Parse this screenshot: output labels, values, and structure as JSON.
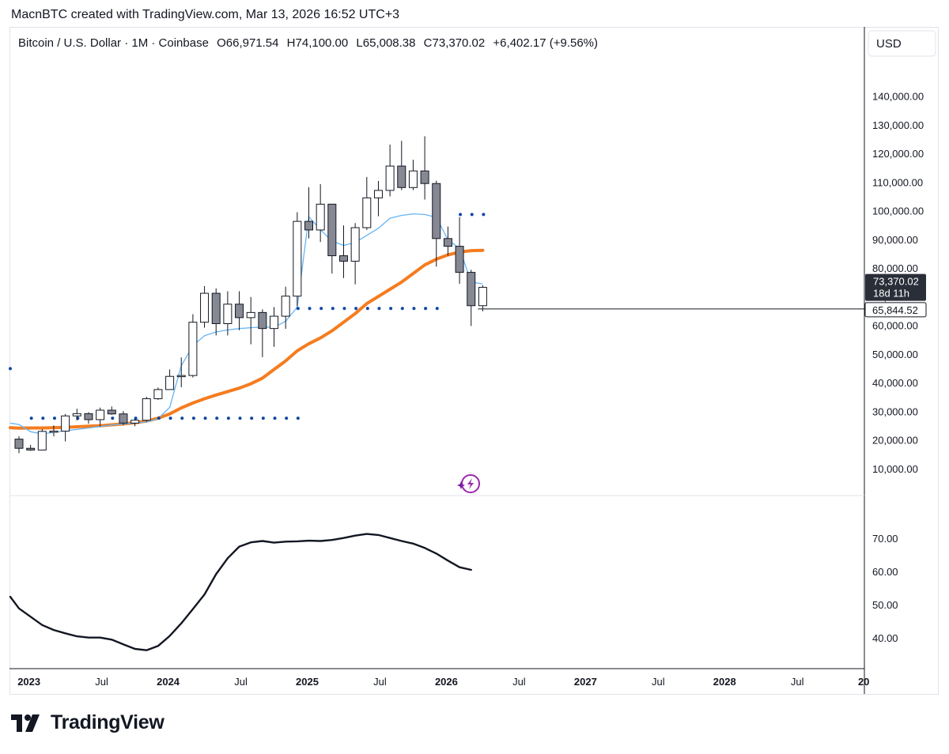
{
  "header": {
    "attribution": "MacnBTC created with TradingView.com, Mar 13, 2026 16:52 UTC+3"
  },
  "legend": {
    "symbol": "Bitcoin / U.S. Dollar · 1M · Coinbase",
    "open": "O66,971.54",
    "high": "H74,100.00",
    "low": "L65,008.38",
    "close": "C73,370.02",
    "change": "+6,402.17 (+9.56%)"
  },
  "currency_button": "USD",
  "footer": {
    "brand": "TradingView"
  },
  "colors": {
    "up_body": "#ffffff",
    "down_body": "#868993",
    "candle_outline": "#131722",
    "ma_thin": "#64b5f6",
    "ma_thick": "#f57c1f",
    "dots": "#0d47a1",
    "rsi_line": "#131722",
    "tag_dark": "#2a2e39",
    "ai_icon": "#9c27b0"
  },
  "chart_data": {
    "type": "candlestick",
    "interval": "1M",
    "price_axis": {
      "ticks": [
        "140,000.00",
        "130,000.00",
        "120,000.00",
        "110,000.00",
        "100,000.00",
        "90,000.00",
        "80,000.00",
        "70,000.00",
        "60,000.00",
        "50,000.00",
        "40,000.00",
        "30,000.00",
        "20,000.00",
        "10,000.00"
      ],
      "range": [
        6500,
        148000
      ]
    },
    "current_price_tag": {
      "price": "73,370.02",
      "countdown": "18d 11h",
      "value": 73370.02
    },
    "horizontal_line": {
      "label": "65,844.52",
      "value": 65844.52
    },
    "time_axis": [
      {
        "label": "2023",
        "index": 0,
        "year": true
      },
      {
        "label": "Jul",
        "index": 6,
        "year": false
      },
      {
        "label": "2024",
        "index": 12,
        "year": true
      },
      {
        "label": "Jul",
        "index": 18,
        "year": false
      },
      {
        "label": "2025",
        "index": 24,
        "year": true
      },
      {
        "label": "Jul",
        "index": 30,
        "year": false
      },
      {
        "label": "2026",
        "index": 36,
        "year": true
      },
      {
        "label": "Jul",
        "index": 42,
        "year": false
      },
      {
        "label": "2027",
        "index": 48,
        "year": true
      },
      {
        "label": "Jul",
        "index": 54,
        "year": false
      },
      {
        "label": "2028",
        "index": 60,
        "year": true
      },
      {
        "label": "Jul",
        "index": 66,
        "year": false
      },
      {
        "label": "20",
        "index": 72,
        "year": true
      }
    ],
    "candles": [
      {
        "t": "2022-11",
        "o": 20400,
        "h": 21400,
        "l": 15500,
        "c": 17200
      },
      {
        "t": "2022-12",
        "o": 17200,
        "h": 18400,
        "l": 16300,
        "c": 16600
      },
      {
        "t": "2023-01",
        "o": 16600,
        "h": 23900,
        "l": 16500,
        "c": 23100
      },
      {
        "t": "2023-02",
        "o": 23100,
        "h": 25200,
        "l": 21400,
        "c": 23200
      },
      {
        "t": "2023-03",
        "o": 23200,
        "h": 29200,
        "l": 19600,
        "c": 28500
      },
      {
        "t": "2023-04",
        "o": 28500,
        "h": 31000,
        "l": 26900,
        "c": 29300
      },
      {
        "t": "2023-05",
        "o": 29300,
        "h": 29800,
        "l": 25800,
        "c": 27200
      },
      {
        "t": "2023-06",
        "o": 27200,
        "h": 31400,
        "l": 24800,
        "c": 30500
      },
      {
        "t": "2023-07",
        "o": 30500,
        "h": 31800,
        "l": 28900,
        "c": 29200
      },
      {
        "t": "2023-08",
        "o": 29200,
        "h": 30200,
        "l": 25300,
        "c": 26000
      },
      {
        "t": "2023-09",
        "o": 26000,
        "h": 27500,
        "l": 24900,
        "c": 27000
      },
      {
        "t": "2023-10",
        "o": 27000,
        "h": 35200,
        "l": 26500,
        "c": 34500
      },
      {
        "t": "2023-11",
        "o": 34500,
        "h": 38400,
        "l": 34100,
        "c": 37700
      },
      {
        "t": "2023-12",
        "o": 37700,
        "h": 44700,
        "l": 37600,
        "c": 42300
      },
      {
        "t": "2024-01",
        "o": 42300,
        "h": 48900,
        "l": 38500,
        "c": 42600
      },
      {
        "t": "2024-02",
        "o": 42600,
        "h": 64000,
        "l": 41900,
        "c": 61200
      },
      {
        "t": "2024-03",
        "o": 61200,
        "h": 73800,
        "l": 59300,
        "c": 71300
      },
      {
        "t": "2024-04",
        "o": 71300,
        "h": 73000,
        "l": 56600,
        "c": 60700
      },
      {
        "t": "2024-05",
        "o": 60700,
        "h": 72000,
        "l": 56600,
        "c": 67500
      },
      {
        "t": "2024-06",
        "o": 67500,
        "h": 72000,
        "l": 58400,
        "c": 62800
      },
      {
        "t": "2024-07",
        "o": 62800,
        "h": 70000,
        "l": 53500,
        "c": 64600
      },
      {
        "t": "2024-08",
        "o": 64600,
        "h": 65700,
        "l": 49000,
        "c": 59000
      },
      {
        "t": "2024-09",
        "o": 59000,
        "h": 66500,
        "l": 52600,
        "c": 63300
      },
      {
        "t": "2024-10",
        "o": 63300,
        "h": 73600,
        "l": 58900,
        "c": 70300
      },
      {
        "t": "2024-11",
        "o": 70300,
        "h": 99600,
        "l": 66800,
        "c": 96400
      },
      {
        "t": "2024-12",
        "o": 96400,
        "h": 108300,
        "l": 90500,
        "c": 93400
      },
      {
        "t": "2025-01",
        "o": 93400,
        "h": 109400,
        "l": 89200,
        "c": 102400
      },
      {
        "t": "2025-02",
        "o": 102400,
        "h": 102500,
        "l": 78200,
        "c": 84400
      },
      {
        "t": "2025-03",
        "o": 84400,
        "h": 95000,
        "l": 76600,
        "c": 82500
      },
      {
        "t": "2025-04",
        "o": 82500,
        "h": 95800,
        "l": 74400,
        "c": 94200
      },
      {
        "t": "2025-05",
        "o": 94200,
        "h": 111900,
        "l": 93400,
        "c": 104600
      },
      {
        "t": "2025-06",
        "o": 104600,
        "h": 110500,
        "l": 98200,
        "c": 107200
      },
      {
        "t": "2025-07",
        "o": 107200,
        "h": 123200,
        "l": 105100,
        "c": 115700
      },
      {
        "t": "2025-08",
        "o": 115700,
        "h": 124500,
        "l": 107300,
        "c": 108200
      },
      {
        "t": "2025-09",
        "o": 108200,
        "h": 117900,
        "l": 107300,
        "c": 114000
      },
      {
        "t": "2025-10",
        "o": 114000,
        "h": 126100,
        "l": 104000,
        "c": 109600
      },
      {
        "t": "2025-11",
        "o": 109600,
        "h": 110600,
        "l": 80600,
        "c": 90400
      },
      {
        "t": "2025-12",
        "o": 90400,
        "h": 94600,
        "l": 84400,
        "c": 87700
      },
      {
        "t": "2026-01",
        "o": 87700,
        "h": 97900,
        "l": 74600,
        "c": 78600
      },
      {
        "t": "2026-02",
        "o": 78600,
        "h": 79500,
        "l": 59900,
        "c": 66970
      },
      {
        "t": "2026-03",
        "o": 66971.54,
        "h": 74100,
        "l": 65008.38,
        "c": 73370.02
      }
    ],
    "ma_thin": [
      {
        "i": -1,
        "v": 26000
      },
      {
        "i": 0,
        "v": 25500
      },
      {
        "i": 1,
        "v": 23000
      },
      {
        "i": 2,
        "v": 22200
      },
      {
        "i": 3,
        "v": 22800
      },
      {
        "i": 4,
        "v": 23300
      },
      {
        "i": 5,
        "v": 23800
      },
      {
        "i": 6,
        "v": 24300
      },
      {
        "i": 7,
        "v": 24800
      },
      {
        "i": 8,
        "v": 25300
      },
      {
        "i": 9,
        "v": 25700
      },
      {
        "i": 10,
        "v": 26000
      },
      {
        "i": 11,
        "v": 26400
      },
      {
        "i": 12,
        "v": 27500
      },
      {
        "i": 13,
        "v": 31500
      },
      {
        "i": 14,
        "v": 46000
      },
      {
        "i": 15,
        "v": 53000
      },
      {
        "i": 16,
        "v": 56500
      },
      {
        "i": 17,
        "v": 57800
      },
      {
        "i": 18,
        "v": 58500
      },
      {
        "i": 19,
        "v": 59000
      },
      {
        "i": 20,
        "v": 59300
      },
      {
        "i": 21,
        "v": 59500
      },
      {
        "i": 22,
        "v": 59500
      },
      {
        "i": 23,
        "v": 61500
      },
      {
        "i": 24,
        "v": 66500
      },
      {
        "i": 25,
        "v": 98000
      },
      {
        "i": 26,
        "v": 93500
      },
      {
        "i": 27,
        "v": 89500
      },
      {
        "i": 28,
        "v": 88000
      },
      {
        "i": 29,
        "v": 89000
      },
      {
        "i": 30,
        "v": 91500
      },
      {
        "i": 31,
        "v": 94000
      },
      {
        "i": 32,
        "v": 97500
      },
      {
        "i": 33,
        "v": 98500
      },
      {
        "i": 34,
        "v": 99000
      },
      {
        "i": 35,
        "v": 98800
      },
      {
        "i": 36,
        "v": 97800
      },
      {
        "i": 37,
        "v": 90000
      },
      {
        "i": 38,
        "v": 87000
      },
      {
        "i": 39,
        "v": 75200
      },
      {
        "i": 40,
        "v": 74600
      }
    ],
    "ma_thick": [
      {
        "i": -1,
        "v": 24400
      },
      {
        "i": 0,
        "v": 24200
      },
      {
        "i": 1,
        "v": 24300
      },
      {
        "i": 2,
        "v": 24300
      },
      {
        "i": 3,
        "v": 24400
      },
      {
        "i": 4,
        "v": 24500
      },
      {
        "i": 5,
        "v": 24700
      },
      {
        "i": 6,
        "v": 24900
      },
      {
        "i": 7,
        "v": 25100
      },
      {
        "i": 8,
        "v": 25400
      },
      {
        "i": 9,
        "v": 25700
      },
      {
        "i": 10,
        "v": 26100
      },
      {
        "i": 11,
        "v": 26700
      },
      {
        "i": 12,
        "v": 27700
      },
      {
        "i": 13,
        "v": 29200
      },
      {
        "i": 14,
        "v": 31300
      },
      {
        "i": 15,
        "v": 33000
      },
      {
        "i": 16,
        "v": 34500
      },
      {
        "i": 17,
        "v": 35800
      },
      {
        "i": 18,
        "v": 37000
      },
      {
        "i": 19,
        "v": 38200
      },
      {
        "i": 20,
        "v": 39700
      },
      {
        "i": 21,
        "v": 41700
      },
      {
        "i": 22,
        "v": 44700
      },
      {
        "i": 23,
        "v": 47700
      },
      {
        "i": 24,
        "v": 51200
      },
      {
        "i": 25,
        "v": 53700
      },
      {
        "i": 26,
        "v": 55700
      },
      {
        "i": 27,
        "v": 58200
      },
      {
        "i": 28,
        "v": 61200
      },
      {
        "i": 29,
        "v": 64200
      },
      {
        "i": 30,
        "v": 67700
      },
      {
        "i": 31,
        "v": 70200
      },
      {
        "i": 32,
        "v": 72700
      },
      {
        "i": 33,
        "v": 75200
      },
      {
        "i": 34,
        "v": 78200
      },
      {
        "i": 35,
        "v": 81200
      },
      {
        "i": 36,
        "v": 83200
      },
      {
        "i": 37,
        "v": 84700
      },
      {
        "i": 38,
        "v": 85700
      },
      {
        "i": 39,
        "v": 86200
      },
      {
        "i": 40,
        "v": 86300
      }
    ],
    "dot_rows": [
      {
        "value": 27700,
        "from": 1,
        "to": 24
      },
      {
        "value": 66000,
        "from": 24,
        "to": 36
      },
      {
        "value": 98800,
        "from": 38,
        "to": 40
      },
      {
        "value": 45000,
        "from": -1,
        "to": -1
      }
    ],
    "rsi": {
      "ticks": [
        "70.00",
        "60.00",
        "50.00",
        "40.00"
      ],
      "range": [
        33,
        75.6
      ],
      "values": [
        {
          "i": -1,
          "v": 52.5
        },
        {
          "i": 0,
          "v": 49
        },
        {
          "i": 1,
          "v": 46.5
        },
        {
          "i": 2,
          "v": 44
        },
        {
          "i": 3,
          "v": 42.5
        },
        {
          "i": 4,
          "v": 41.5
        },
        {
          "i": 5,
          "v": 40.6
        },
        {
          "i": 6,
          "v": 40.2
        },
        {
          "i": 7,
          "v": 40.2
        },
        {
          "i": 8,
          "v": 39.6
        },
        {
          "i": 9,
          "v": 38.2
        },
        {
          "i": 10,
          "v": 36.8
        },
        {
          "i": 11,
          "v": 36.4
        },
        {
          "i": 12,
          "v": 37.7
        },
        {
          "i": 13,
          "v": 40.7
        },
        {
          "i": 14,
          "v": 44.5
        },
        {
          "i": 15,
          "v": 48.8
        },
        {
          "i": 16,
          "v": 53.2
        },
        {
          "i": 17,
          "v": 59.3
        },
        {
          "i": 18,
          "v": 64.1
        },
        {
          "i": 19,
          "v": 67.6
        },
        {
          "i": 20,
          "v": 68.9
        },
        {
          "i": 21,
          "v": 69.3
        },
        {
          "i": 22,
          "v": 68.8
        },
        {
          "i": 23,
          "v": 69.1
        },
        {
          "i": 24,
          "v": 69.2
        },
        {
          "i": 25,
          "v": 69.4
        },
        {
          "i": 26,
          "v": 69.3
        },
        {
          "i": 27,
          "v": 69.6
        },
        {
          "i": 28,
          "v": 70.2
        },
        {
          "i": 29,
          "v": 70.9
        },
        {
          "i": 30,
          "v": 71.4
        },
        {
          "i": 31,
          "v": 71.1
        },
        {
          "i": 32,
          "v": 70.2
        },
        {
          "i": 33,
          "v": 69.3
        },
        {
          "i": 34,
          "v": 68.5
        },
        {
          "i": 35,
          "v": 67.2
        },
        {
          "i": 36,
          "v": 65.5
        },
        {
          "i": 37,
          "v": 63.4
        },
        {
          "i": 38,
          "v": 61.4
        },
        {
          "i": 39,
          "v": 60.6
        }
      ]
    }
  }
}
